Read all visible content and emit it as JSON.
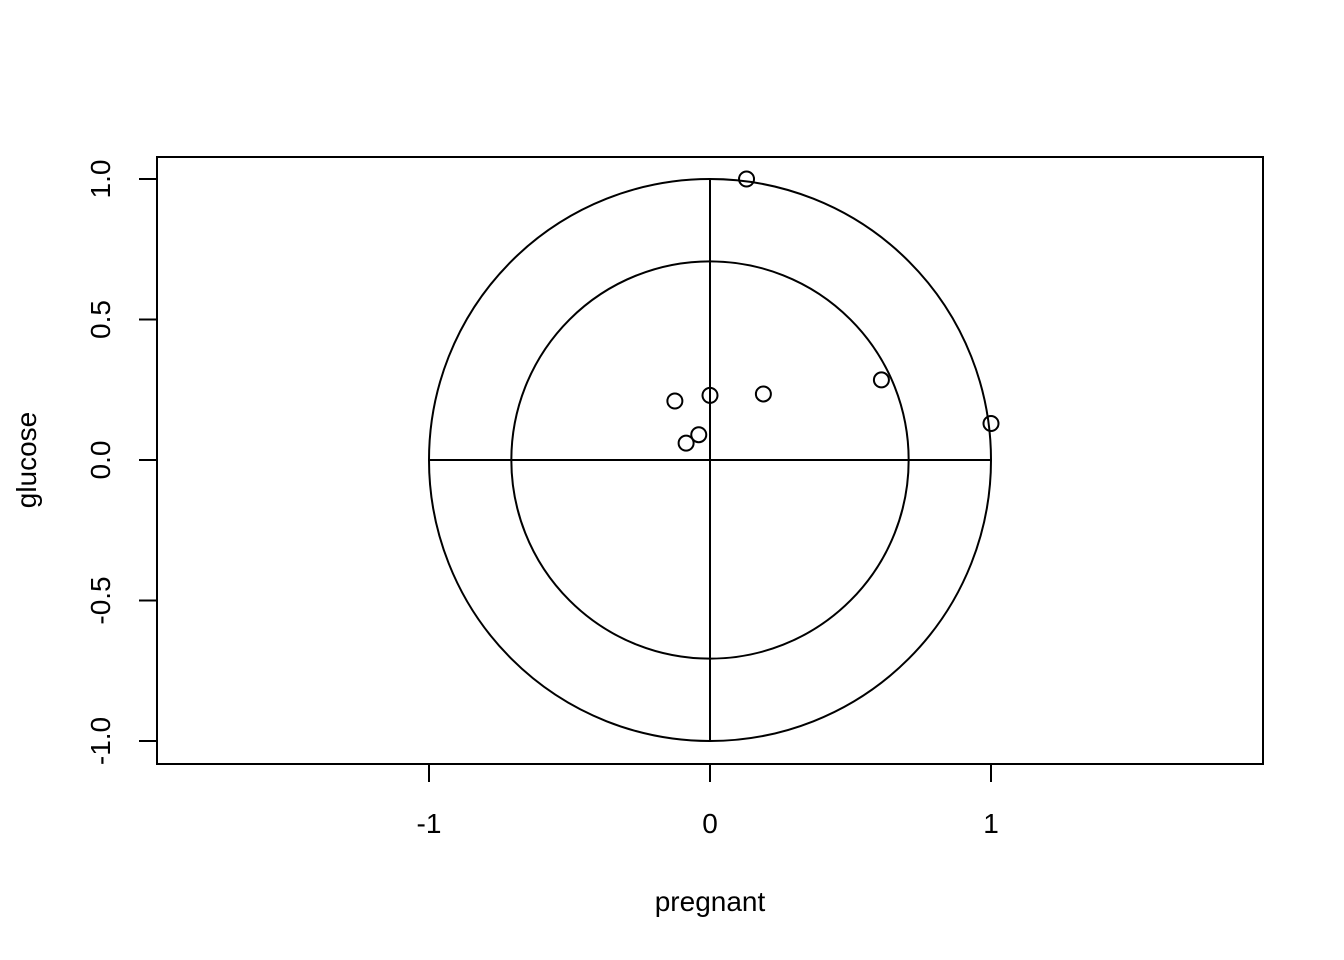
{
  "chart_data": {
    "type": "scatter",
    "title": "",
    "xlabel": "pregnant",
    "ylabel": "glucose",
    "xlim": [
      -1.97,
      1.97
    ],
    "ylim": [
      -1.08,
      1.08
    ],
    "x_ticks": [
      -1,
      0,
      1
    ],
    "x_tick_labels": [
      "-1",
      "0",
      "1"
    ],
    "y_ticks": [
      -1.0,
      -0.5,
      0.0,
      0.5,
      1.0
    ],
    "y_tick_labels": [
      "-1.0",
      "-0.5",
      "0.0",
      "0.5",
      "1.0"
    ],
    "grid": false,
    "reference_circles": [
      1.0,
      0.707
    ],
    "reference_lines": [
      "x = 0",
      "y = 0"
    ],
    "points": [
      {
        "x": 0.13,
        "y": 1.0
      },
      {
        "x": 1.0,
        "y": 0.13
      },
      {
        "x": 0.61,
        "y": 0.285
      },
      {
        "x": 0.19,
        "y": 0.235
      },
      {
        "x": 0.0,
        "y": 0.23
      },
      {
        "x": -0.125,
        "y": 0.21
      },
      {
        "x": -0.04,
        "y": 0.09
      },
      {
        "x": -0.085,
        "y": 0.06
      }
    ]
  }
}
